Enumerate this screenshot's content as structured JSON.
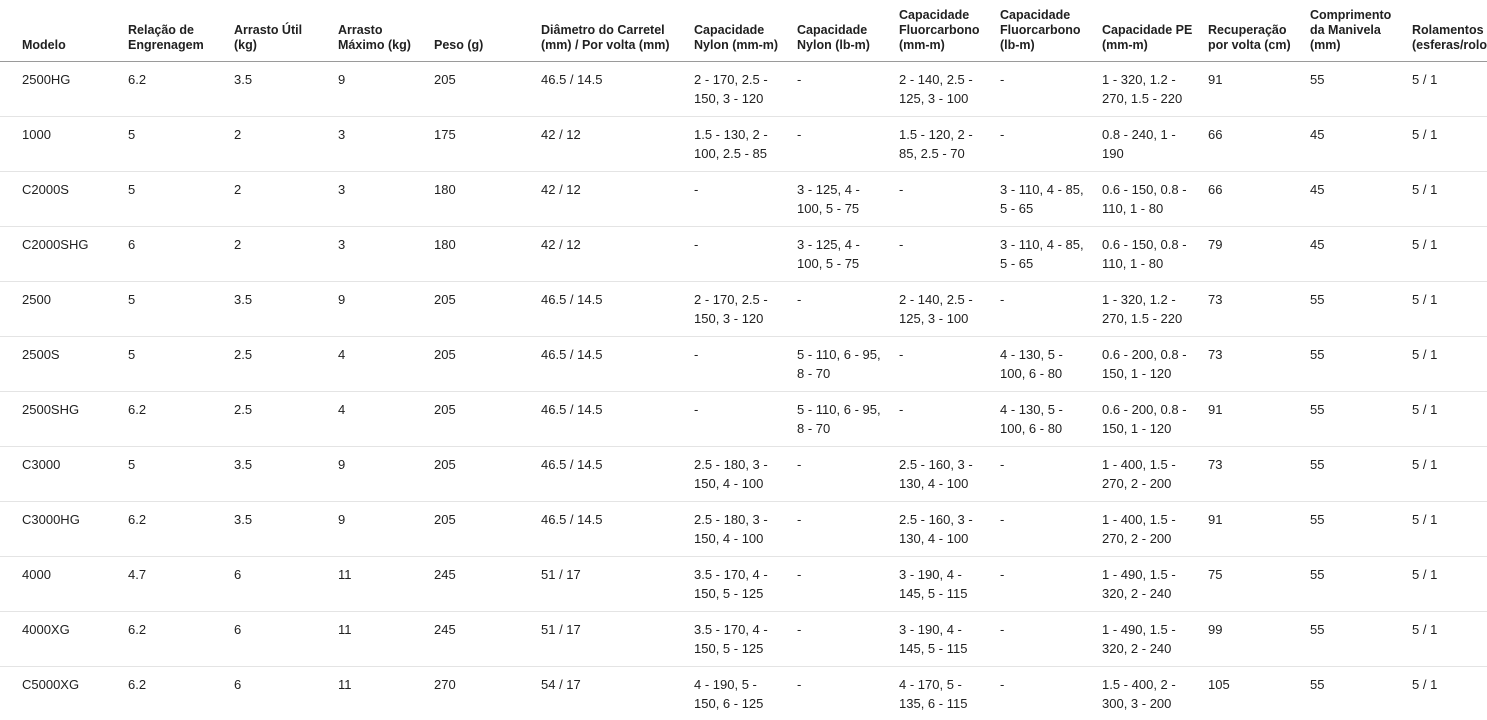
{
  "page": {
    "background_color": "#ffffff",
    "text_color": "#212121",
    "header_border_color": "#9a9a9a",
    "row_border_color": "#e4e4e4"
  },
  "table": {
    "columns": [
      "Modelo",
      "Relação de Engrenagem",
      "Arrasto Útil (kg)",
      "Arrasto Máximo (kg)",
      "Peso (g)",
      "Diâmetro do Carretel (mm) / Por volta (mm)",
      "Capacidade Nylon (mm-m)",
      "Capacidade Nylon (lb-m)",
      "Capacidade Fluorcarbono (mm-m)",
      "Capacidade Fluorcarbono (lb-m)",
      "Capacidade PE (mm-m)",
      "Recuperação por volta (cm)",
      "Comprimento da Manivela (mm)",
      "Rolamentos (esferas/rolos)"
    ],
    "rows": [
      [
        "2500HG",
        "6.2",
        "3.5",
        "9",
        "205",
        "46.5 / 14.5",
        "2 - 170, 2.5 - 150, 3 - 120",
        "-",
        "2 - 140, 2.5 - 125, 3 - 100",
        "-",
        "1 - 320, 1.2 - 270, 1.5 - 220",
        "91",
        "55",
        "5 / 1"
      ],
      [
        "1000",
        "5",
        "2",
        "3",
        "175",
        "42 / 12",
        "1.5 - 130, 2 - 100, 2.5 - 85",
        "-",
        "1.5 - 120, 2 - 85, 2.5 - 70",
        "-",
        "0.8 - 240, 1 - 190",
        "66",
        "45",
        "5 / 1"
      ],
      [
        "C2000S",
        "5",
        "2",
        "3",
        "180",
        "42 / 12",
        "-",
        "3 - 125, 4 - 100, 5 - 75",
        "-",
        "3 - 110, 4 - 85, 5 - 65",
        "0.6 - 150, 0.8 - 110, 1 - 80",
        "66",
        "45",
        "5 / 1"
      ],
      [
        "C2000SHG",
        "6",
        "2",
        "3",
        "180",
        "42 / 12",
        "-",
        "3 - 125, 4 - 100, 5 - 75",
        "-",
        "3 - 110, 4 - 85, 5 - 65",
        "0.6 - 150, 0.8 - 110, 1 - 80",
        "79",
        "45",
        "5 / 1"
      ],
      [
        "2500",
        "5",
        "3.5",
        "9",
        "205",
        "46.5 / 14.5",
        "2 - 170, 2.5 - 150, 3 - 120",
        "-",
        "2 - 140, 2.5 - 125, 3 - 100",
        "-",
        "1 - 320, 1.2 - 270, 1.5 - 220",
        "73",
        "55",
        "5 / 1"
      ],
      [
        "2500S",
        "5",
        "2.5",
        "4",
        "205",
        "46.5 / 14.5",
        "-",
        "5 - 110, 6 - 95, 8 - 70",
        "-",
        "4 - 130, 5 - 100, 6 - 80",
        "0.6 - 200, 0.8 - 150, 1 - 120",
        "73",
        "55",
        "5 / 1"
      ],
      [
        "2500SHG",
        "6.2",
        "2.5",
        "4",
        "205",
        "46.5 / 14.5",
        "-",
        "5 - 110, 6 - 95, 8 - 70",
        "-",
        "4 - 130, 5 - 100, 6 - 80",
        "0.6 - 200, 0.8 - 150, 1 - 120",
        "91",
        "55",
        "5 / 1"
      ],
      [
        "C3000",
        "5",
        "3.5",
        "9",
        "205",
        "46.5 / 14.5",
        "2.5 - 180, 3 - 150, 4 - 100",
        "-",
        "2.5 - 160, 3 - 130, 4 - 100",
        "-",
        "1 - 400, 1.5 - 270, 2 - 200",
        "73",
        "55",
        "5 / 1"
      ],
      [
        "C3000HG",
        "6.2",
        "3.5",
        "9",
        "205",
        "46.5 / 14.5",
        "2.5 - 180, 3 - 150, 4 - 100",
        "-",
        "2.5 - 160, 3 - 130, 4 - 100",
        "-",
        "1 - 400, 1.5 - 270, 2 - 200",
        "91",
        "55",
        "5 / 1"
      ],
      [
        "4000",
        "4.7",
        "6",
        "11",
        "245",
        "51 / 17",
        "3.5 - 170, 4 - 150, 5 - 125",
        "-",
        "3 - 190, 4 - 145, 5 - 115",
        "-",
        "1 - 490, 1.5 - 320, 2 - 240",
        "75",
        "55",
        "5 / 1"
      ],
      [
        "4000XG",
        "6.2",
        "6",
        "11",
        "245",
        "51 / 17",
        "3.5 - 170, 4 - 150, 5 - 125",
        "-",
        "3 - 190, 4 - 145, 5 - 115",
        "-",
        "1 - 490, 1.5 - 320, 2 - 240",
        "99",
        "55",
        "5 / 1"
      ],
      [
        "C5000XG",
        "6.2",
        "6",
        "11",
        "270",
        "54 / 17",
        "4 - 190, 5 - 150, 6 - 125",
        "-",
        "4 - 170, 5 - 135, 6 - 115",
        "-",
        "1.5 - 400, 2 - 300, 3 - 200",
        "105",
        "55",
        "5 / 1"
      ]
    ]
  }
}
